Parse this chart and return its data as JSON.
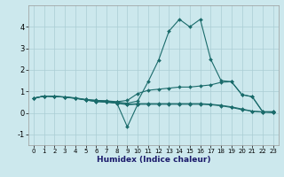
{
  "xlabel": "Humidex (Indice chaleur)",
  "xlim": [
    -0.5,
    23.5
  ],
  "ylim": [
    -1.5,
    5.0
  ],
  "yticks": [
    -1,
    0,
    1,
    2,
    3,
    4
  ],
  "xticks": [
    0,
    1,
    2,
    3,
    4,
    5,
    6,
    7,
    8,
    9,
    10,
    11,
    12,
    13,
    14,
    15,
    16,
    17,
    18,
    19,
    20,
    21,
    22,
    23
  ],
  "bg_color": "#cce8ed",
  "grid_color": "#aacdd4",
  "line_color": "#1a6b6b",
  "curves": [
    {
      "x": [
        0,
        1,
        2,
        3,
        4,
        5,
        6,
        7,
        8,
        9,
        10,
        11,
        12,
        13,
        14,
        15,
        16,
        17,
        18,
        19,
        20,
        21,
        22,
        23
      ],
      "y": [
        0.68,
        0.78,
        0.78,
        0.72,
        0.68,
        0.62,
        0.58,
        0.55,
        0.5,
        0.45,
        0.55,
        1.45,
        2.45,
        3.8,
        4.35,
        4.0,
        4.35,
        2.5,
        1.5,
        1.45,
        0.85,
        0.75,
        0.05,
        0.05
      ]
    },
    {
      "x": [
        0,
        1,
        2,
        3,
        4,
        5,
        6,
        7,
        8,
        9,
        10,
        11,
        12,
        13,
        14,
        15,
        16,
        17,
        18,
        19,
        20,
        21,
        22,
        23
      ],
      "y": [
        0.68,
        0.78,
        0.76,
        0.74,
        0.7,
        0.62,
        0.58,
        0.56,
        0.52,
        0.58,
        0.9,
        1.05,
        1.1,
        1.15,
        1.2,
        1.2,
        1.25,
        1.3,
        1.42,
        1.45,
        0.85,
        0.75,
        0.05,
        0.05
      ]
    },
    {
      "x": [
        0,
        1,
        2,
        3,
        4,
        5,
        6,
        7,
        8,
        9,
        10,
        11,
        12,
        13,
        14,
        15,
        16,
        17,
        18,
        19,
        20,
        21,
        22,
        23
      ],
      "y": [
        0.68,
        0.78,
        0.76,
        0.74,
        0.68,
        0.6,
        0.55,
        0.52,
        0.47,
        0.4,
        0.43,
        0.43,
        0.43,
        0.43,
        0.43,
        0.43,
        0.43,
        0.4,
        0.35,
        0.28,
        0.18,
        0.08,
        0.04,
        0.02
      ]
    },
    {
      "x": [
        0,
        1,
        2,
        3,
        4,
        5,
        6,
        7,
        8,
        9,
        10,
        11,
        12,
        13,
        14,
        15,
        16,
        17,
        18,
        19,
        20,
        21,
        22,
        23
      ],
      "y": [
        0.68,
        0.78,
        0.76,
        0.74,
        0.68,
        0.6,
        0.53,
        0.5,
        0.45,
        0.38,
        0.4,
        0.4,
        0.4,
        0.4,
        0.4,
        0.4,
        0.4,
        0.38,
        0.33,
        0.25,
        0.15,
        0.08,
        0.04,
        0.02
      ]
    },
    {
      "x": [
        5,
        6,
        7,
        8,
        9,
        10
      ],
      "y": [
        0.6,
        0.53,
        0.5,
        0.45,
        -0.65,
        0.4
      ]
    }
  ]
}
